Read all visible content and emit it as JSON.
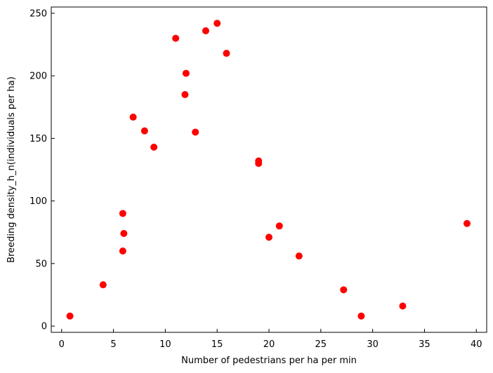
{
  "chart_data": {
    "type": "scatter",
    "title": "",
    "xlabel": "Number of pedestrians per ha per min",
    "ylabel": "Breeding density_h_n(individuals per ha)",
    "xlim": [
      -1,
      41
    ],
    "ylim": [
      -5,
      255
    ],
    "xticks": [
      0,
      5,
      10,
      15,
      20,
      25,
      30,
      35,
      40
    ],
    "yticks": [
      0,
      50,
      100,
      150,
      200,
      250
    ],
    "grid": false,
    "legend": "none",
    "marker_color": "#ff0000",
    "points": [
      {
        "x": 0.8,
        "y": 8
      },
      {
        "x": 4.0,
        "y": 33
      },
      {
        "x": 5.9,
        "y": 60
      },
      {
        "x": 5.9,
        "y": 90
      },
      {
        "x": 6.0,
        "y": 74
      },
      {
        "x": 6.9,
        "y": 167
      },
      {
        "x": 8.0,
        "y": 156
      },
      {
        "x": 8.9,
        "y": 143
      },
      {
        "x": 11.0,
        "y": 230
      },
      {
        "x": 11.9,
        "y": 185
      },
      {
        "x": 12.0,
        "y": 202
      },
      {
        "x": 12.9,
        "y": 155
      },
      {
        "x": 13.9,
        "y": 236
      },
      {
        "x": 15.0,
        "y": 242
      },
      {
        "x": 15.9,
        "y": 218
      },
      {
        "x": 19.0,
        "y": 132
      },
      {
        "x": 19.0,
        "y": 130
      },
      {
        "x": 20.0,
        "y": 71
      },
      {
        "x": 21.0,
        "y": 80
      },
      {
        "x": 22.9,
        "y": 56
      },
      {
        "x": 27.2,
        "y": 29
      },
      {
        "x": 28.9,
        "y": 8
      },
      {
        "x": 32.9,
        "y": 16
      },
      {
        "x": 39.1,
        "y": 82
      }
    ]
  }
}
